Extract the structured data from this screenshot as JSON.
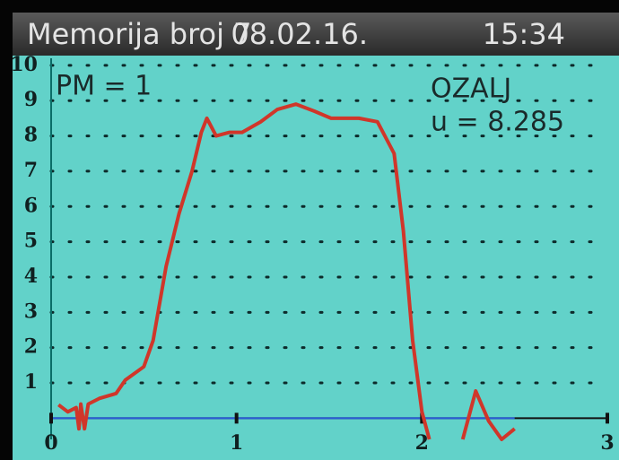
{
  "chart_data": {
    "type": "line",
    "title": "Memorija broj  7",
    "date": "08.02.16.",
    "time": "15:34",
    "annotations": [
      "PM = 1",
      "OZALJ",
      "u = 8.285"
    ],
    "x": [
      0.04,
      0.09,
      0.135,
      0.15,
      0.16,
      0.18,
      0.2,
      0.26,
      0.35,
      0.4,
      0.5,
      0.55,
      0.62,
      0.69,
      0.76,
      0.81,
      0.84,
      0.89,
      0.96,
      1.03,
      1.13,
      1.22,
      1.32,
      1.42,
      1.51,
      1.66,
      1.76,
      1.85,
      1.9,
      1.95,
      2.0,
      2.04,
      2.13,
      2.22,
      2.29,
      2.36,
      2.43,
      2.5
    ],
    "series": [
      {
        "color": "#d0362a",
        "values": [
          0.38,
          0.18,
          0.3,
          -0.3,
          0.4,
          -0.3,
          0.4,
          0.56,
          0.7,
          1.08,
          1.46,
          2.2,
          4.3,
          5.8,
          7.0,
          8.1,
          8.5,
          8.0,
          8.1,
          8.1,
          8.4,
          8.75,
          8.9,
          8.7,
          8.5,
          8.5,
          8.4,
          7.5,
          5.3,
          2.2,
          0.18,
          -0.6,
          null,
          -0.6,
          0.77,
          -0.08,
          -0.6,
          -0.3
        ]
      }
    ],
    "xlim": [
      0,
      3
    ],
    "ylim": [
      -0.6,
      10.2
    ],
    "xticks": [
      0,
      1,
      2,
      3
    ],
    "yticks": [
      1,
      2,
      3,
      4,
      5,
      6,
      7,
      8,
      9,
      10
    ],
    "grid": true
  }
}
